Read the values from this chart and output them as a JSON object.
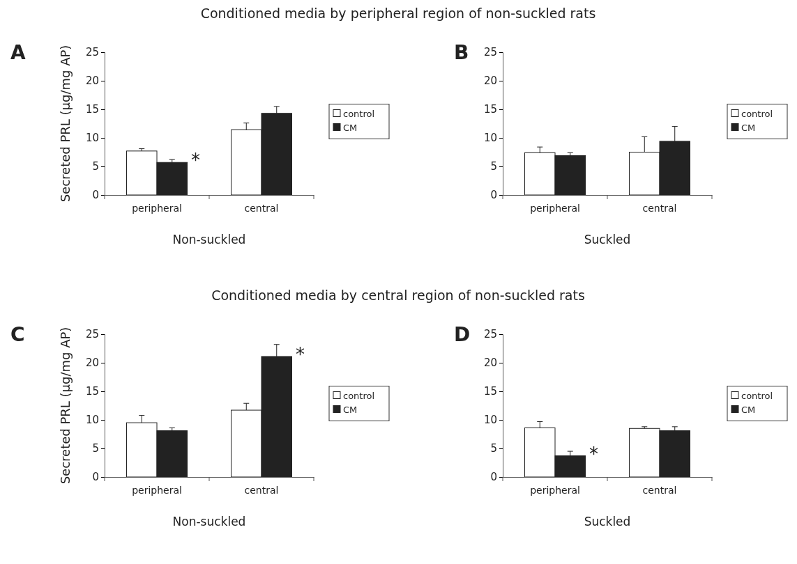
{
  "chart_data": [
    {
      "type": "bar",
      "title": "Conditioned media by peripheral region of non-suckled rats",
      "xlabel": "Non-suckled",
      "ylabel": "Secreted PRL (µg/mg AP)",
      "categories": [
        "peripheral",
        "central"
      ],
      "series": [
        {
          "name": "control",
          "color": "#ffffff",
          "values": [
            7.7,
            11.4
          ],
          "errors": [
            [
              7.7,
              8.1
            ],
            [
              11.4,
              12.6
            ]
          ]
        },
        {
          "name": "CM",
          "color": "#222222",
          "values": [
            5.7,
            14.3
          ],
          "errors": [
            [
              5.7,
              6.2
            ],
            [
              14.3,
              15.5
            ]
          ]
        }
      ],
      "ylim": [
        0,
        25
      ],
      "yticks": [
        0,
        5,
        10,
        15,
        20,
        25
      ],
      "legend": "right",
      "grid": false,
      "annotations": [
        "A",
        {
          "text": "*",
          "x": "peripheral",
          "y": 5.7
        }
      ]
    },
    {
      "type": "bar",
      "xlabel": "Suckled",
      "categories": [
        "peripheral",
        "central"
      ],
      "series": [
        {
          "name": "control",
          "color": "#ffffff",
          "values": [
            7.4,
            7.5
          ],
          "errors": [
            [
              7.4,
              8.4
            ],
            [
              7.5,
              10.2
            ]
          ]
        },
        {
          "name": "CM",
          "color": "#222222",
          "values": [
            6.9,
            9.4
          ],
          "errors": [
            [
              6.9,
              7.4
            ],
            [
              9.4,
              12.0
            ]
          ]
        }
      ],
      "ylim": [
        0,
        25
      ],
      "yticks": [
        0,
        5,
        10,
        15,
        20,
        25
      ],
      "legend": "right",
      "grid": false,
      "annotations": [
        "B"
      ]
    },
    {
      "type": "bar",
      "title": "Conditioned media by central region of non-suckled rats",
      "xlabel": "Non-suckled",
      "ylabel": "Secreted PRL (µg/mg AP)",
      "categories": [
        "peripheral",
        "central"
      ],
      "series": [
        {
          "name": "control",
          "color": "#ffffff",
          "values": [
            9.5,
            11.7
          ],
          "errors": [
            [
              9.5,
              10.8
            ],
            [
              11.7,
              12.9
            ]
          ]
        },
        {
          "name": "CM",
          "color": "#222222",
          "values": [
            8.1,
            21.1
          ],
          "errors": [
            [
              8.1,
              8.6
            ],
            [
              21.1,
              23.2
            ]
          ]
        }
      ],
      "ylim": [
        0,
        25
      ],
      "yticks": [
        0,
        5,
        10,
        15,
        20,
        25
      ],
      "legend": "right",
      "grid": false,
      "annotations": [
        "C",
        {
          "text": "*",
          "x": "central",
          "y": 21.1
        }
      ]
    },
    {
      "type": "bar",
      "xlabel": "Suckled",
      "categories": [
        "peripheral",
        "central"
      ],
      "series": [
        {
          "name": "control",
          "color": "#ffffff",
          "values": [
            8.6,
            8.5
          ],
          "errors": [
            [
              8.6,
              9.7
            ],
            [
              8.5,
              8.8
            ]
          ]
        },
        {
          "name": "CM",
          "color": "#222222",
          "values": [
            3.7,
            8.1
          ],
          "errors": [
            [
              3.7,
              4.5
            ],
            [
              8.1,
              8.8
            ]
          ]
        }
      ],
      "ylim": [
        0,
        25
      ],
      "yticks": [
        0,
        5,
        10,
        15,
        20,
        25
      ],
      "legend": "right",
      "grid": false,
      "annotations": [
        "D",
        {
          "text": "*",
          "x": "peripheral",
          "y": 3.7
        }
      ]
    }
  ]
}
